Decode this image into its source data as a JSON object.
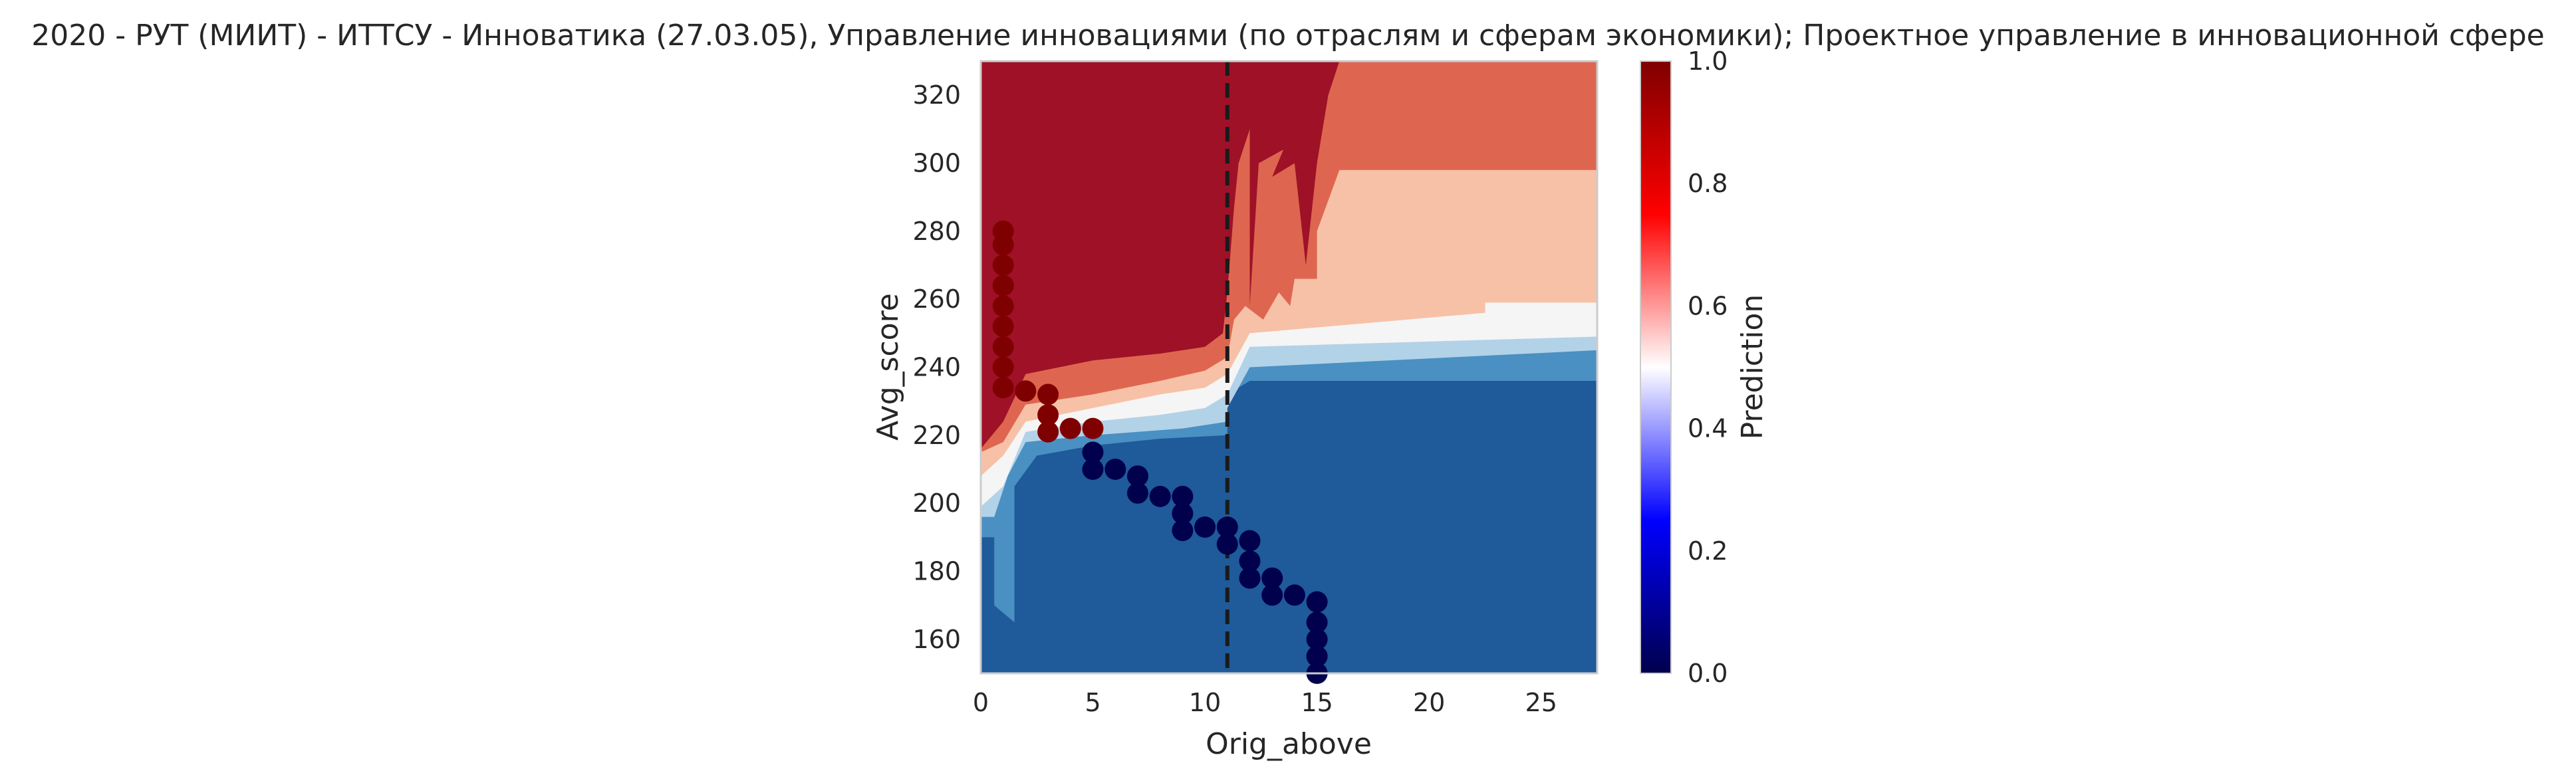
{
  "chart_data": {
    "type": "heatmap",
    "title": "2020 - РУТ (МИИТ) - ИТТСУ - Инноватика (27.03.05), Управление инновациями (по отраслям и сферам экономики); Проектное управление в инновационной сфере",
    "xlabel": "Orig_above",
    "ylabel": "Avg_score",
    "xlim": [
      0,
      27.5
    ],
    "ylim": [
      150,
      330
    ],
    "xticks": [
      0,
      5,
      10,
      15,
      20,
      25
    ],
    "yticks": [
      160,
      180,
      200,
      220,
      240,
      260,
      280,
      300,
      320
    ],
    "grid": false,
    "threshold_line": {
      "x": 11,
      "style": "dashed",
      "color": "#1a1a1a"
    },
    "colorbar": {
      "label": "Prediction",
      "range": [
        0,
        1
      ],
      "ticks": [
        "0.0",
        "0.2",
        "0.4",
        "0.6",
        "0.8",
        "1.0"
      ]
    },
    "contour_colors": {
      "level_0": "#1f5a9a",
      "level_1": "#4a90c2",
      "level_2": "#b2d2e8",
      "level_3": "#f5f5f5",
      "level_4": "#f7c1a7",
      "level_5": "#de6650",
      "level_6": "#9e1127"
    },
    "series": [
      {
        "name": "",
        "color": "#7f0000",
        "points": [
          {
            "x": 1,
            "y": 234
          },
          {
            "x": 1,
            "y": 240
          },
          {
            "x": 1,
            "y": 246
          },
          {
            "x": 1,
            "y": 252
          },
          {
            "x": 1,
            "y": 258
          },
          {
            "x": 1,
            "y": 264
          },
          {
            "x": 1,
            "y": 270
          },
          {
            "x": 1,
            "y": 276
          },
          {
            "x": 1,
            "y": 280
          },
          {
            "x": 2,
            "y": 233
          },
          {
            "x": 3,
            "y": 221
          },
          {
            "x": 3,
            "y": 226
          },
          {
            "x": 3,
            "y": 232
          },
          {
            "x": 4,
            "y": 222
          },
          {
            "x": 5,
            "y": 222
          }
        ]
      },
      {
        "name": "",
        "color": "#00004c",
        "points": [
          {
            "x": 5,
            "y": 210
          },
          {
            "x": 5,
            "y": 215
          },
          {
            "x": 6,
            "y": 210
          },
          {
            "x": 7,
            "y": 203
          },
          {
            "x": 7,
            "y": 208
          },
          {
            "x": 8,
            "y": 202
          },
          {
            "x": 9,
            "y": 192
          },
          {
            "x": 9,
            "y": 197
          },
          {
            "x": 9,
            "y": 202
          },
          {
            "x": 10,
            "y": 193
          },
          {
            "x": 11,
            "y": 188
          },
          {
            "x": 11,
            "y": 193
          },
          {
            "x": 12,
            "y": 178
          },
          {
            "x": 12,
            "y": 183
          },
          {
            "x": 12,
            "y": 189
          },
          {
            "x": 13,
            "y": 173
          },
          {
            "x": 13,
            "y": 178
          },
          {
            "x": 14,
            "y": 173
          },
          {
            "x": 15,
            "y": 150
          },
          {
            "x": 15,
            "y": 155
          },
          {
            "x": 15,
            "y": 160
          },
          {
            "x": 15,
            "y": 165
          },
          {
            "x": 15,
            "y": 171
          }
        ]
      }
    ]
  }
}
